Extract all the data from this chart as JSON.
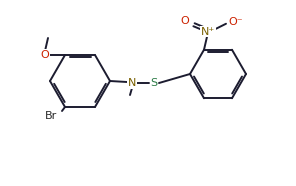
{
  "bg": "#ffffff",
  "bc": "#1c1c30",
  "colors": {
    "O": "#cc2200",
    "N": "#7a6000",
    "S": "#2a7a45",
    "Br": "#2a2a2a",
    "default": "#1c1c30"
  },
  "figsize": [
    2.96,
    1.86
  ],
  "dpi": 100,
  "lw": 1.4,
  "fs": 8.0
}
